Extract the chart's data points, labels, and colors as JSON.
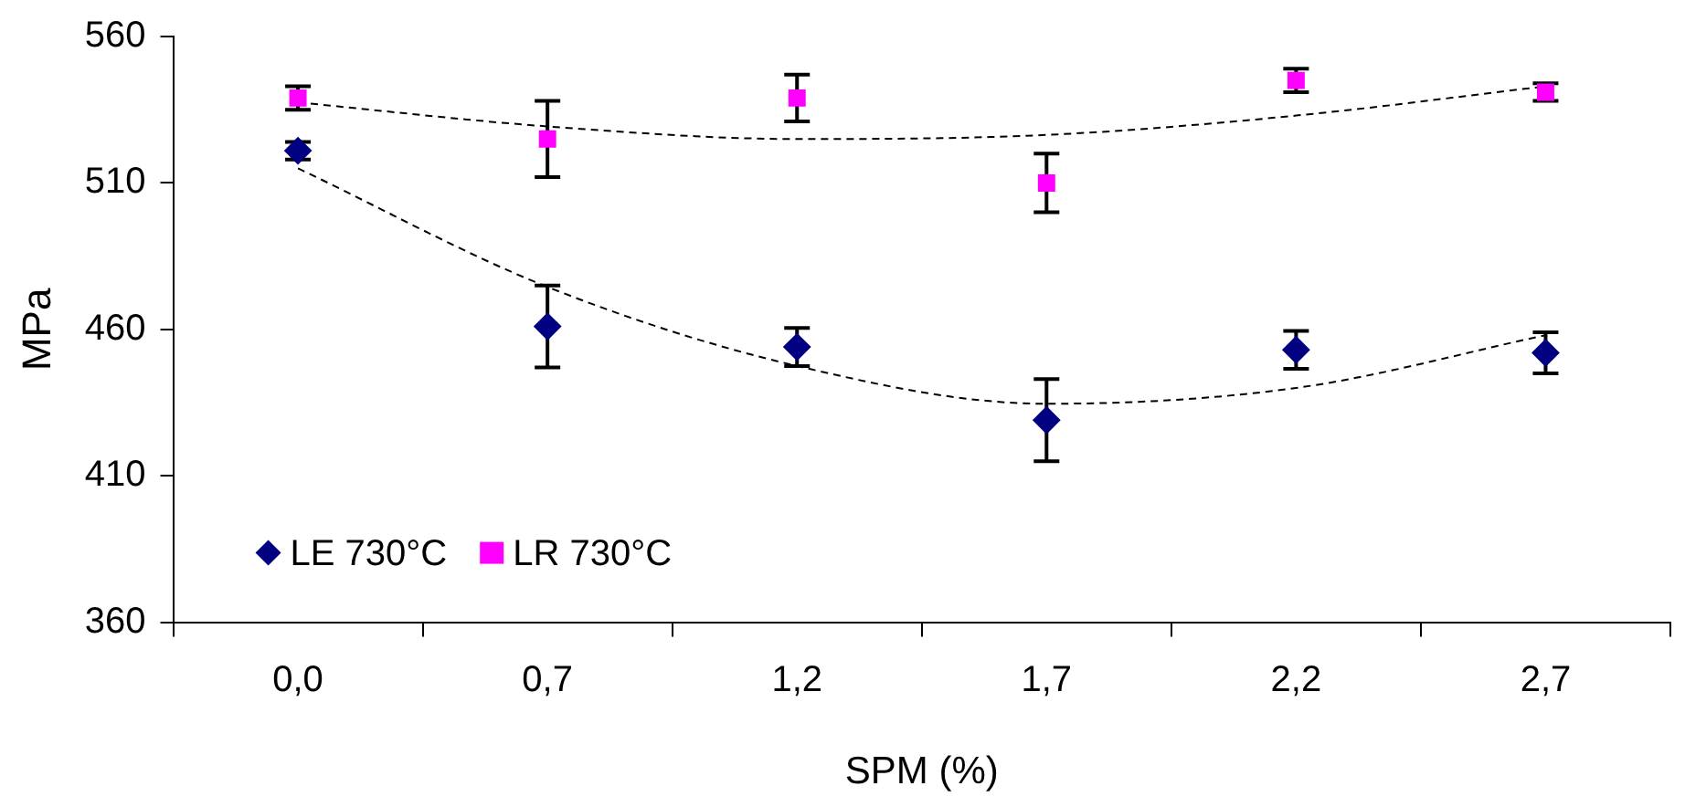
{
  "chart_data": {
    "type": "scatter",
    "xlabel": "SPM (%)",
    "ylabel": "MPa",
    "categories": [
      "0,0",
      "0,7",
      "1,2",
      "1,7",
      "2,2",
      "2,7"
    ],
    "ylim": [
      360,
      560
    ],
    "yticks": [
      360,
      410,
      460,
      510,
      560
    ],
    "grid": false,
    "legend": "bottom left",
    "series": [
      {
        "name": "LE 730°C",
        "color": "#000080",
        "marker": "diamond",
        "values": [
          521,
          461,
          454,
          429,
          453,
          452
        ],
        "errors": [
          3,
          14,
          6.5,
          14,
          6.5,
          7
        ]
      },
      {
        "name": "LR 730°C",
        "color": "#ff00ff",
        "marker": "square",
        "values": [
          539,
          525,
          539,
          510,
          545,
          541
        ],
        "errors": [
          4,
          13,
          8,
          10,
          4,
          3
        ]
      },
      {
        "type": "line",
        "color": "#000000",
        "marker": "none",
        "line_style": "dashed",
        "values": [
          515,
          474.5,
          447.5,
          434.6,
          440,
          458
        ]
      },
      {
        "type": "line",
        "color": "#000000",
        "marker": "none",
        "line_style": "dashed",
        "values": [
          537.5,
          529.3,
          525,
          526.4,
          533,
          543
        ]
      }
    ]
  }
}
